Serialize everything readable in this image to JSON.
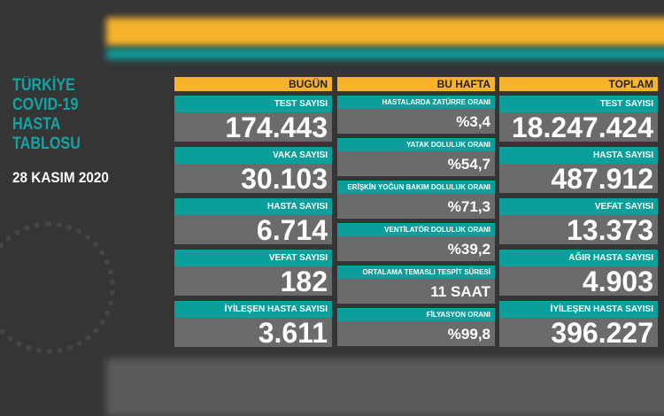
{
  "title_lines": [
    "TÜRKİYE",
    "COVID-19",
    "HASTA",
    "TABLOSU"
  ],
  "date": "28 KASIM 2020",
  "colors": {
    "header": "#f7b32b",
    "label": "#0b9f9b",
    "value_bg": "#6b6b6b",
    "background": "#353536",
    "title": "#14a3a3"
  },
  "today": {
    "header": "BUGÜN",
    "items": [
      {
        "label": "TEST SAYISI",
        "value": "174.443"
      },
      {
        "label": "VAKA SAYISI",
        "value": "30.103"
      },
      {
        "label": "HASTA SAYISI",
        "value": "6.714"
      },
      {
        "label": "VEFAT SAYISI",
        "value": "182"
      },
      {
        "label": "İYİLEŞEN HASTA SAYISI",
        "value": "3.611"
      }
    ]
  },
  "week": {
    "header": "BU HAFTA",
    "items": [
      {
        "label": "HASTALARDA ZATÜRRE ORANI",
        "value": "%3,4"
      },
      {
        "label": "YATAK DOLULUK ORANI",
        "value": "%54,7"
      },
      {
        "label": "ERİŞKİN YOĞUN BAKIM DOLULUK ORANI",
        "value": "%71,3"
      },
      {
        "label": "VENTİLATÖR DOLULUK ORANI",
        "value": "%39,2"
      },
      {
        "label": "ORTALAMA TEMASLI TESPİT SÜRESİ",
        "value": "11 SAAT"
      },
      {
        "label": "FİLYASYON ORANI",
        "value": "%99,8"
      }
    ]
  },
  "total": {
    "header": "TOPLAM",
    "items": [
      {
        "label": "TEST SAYISI",
        "value": "18.247.424"
      },
      {
        "label": "HASTA SAYISI",
        "value": "487.912"
      },
      {
        "label": "VEFAT SAYISI",
        "value": "13.373"
      },
      {
        "label": "AĞIR HASTA SAYISI",
        "value": "4.903"
      },
      {
        "label": "İYİLEŞEN HASTA SAYISI",
        "value": "396.227"
      }
    ]
  }
}
